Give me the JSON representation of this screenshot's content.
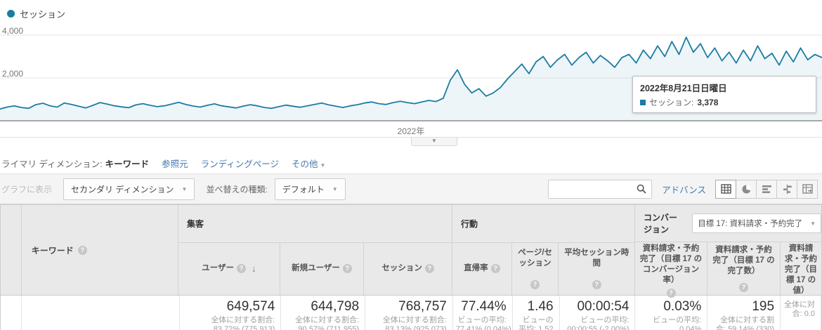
{
  "colors": {
    "accent_blue": "#1c7ca3",
    "link_blue": "#4479ad",
    "header_bg": "#e9e9e9",
    "toolbar_bg": "#f4f4f4"
  },
  "icons": {
    "help": "?",
    "caret": "▼",
    "sort_desc": "↓",
    "collapse": "▼"
  },
  "chart": {
    "legend": "セッション",
    "y_ticks": [
      "4,000",
      "2,000"
    ],
    "x_label": "2022年"
  },
  "chart_data": {
    "type": "line",
    "title": "",
    "xlabel": "2022年",
    "ylabel": "セッション",
    "ylim": [
      0,
      4600
    ],
    "y_tick_values": [
      2000,
      4000
    ],
    "grid": true,
    "legend_position": "top-left",
    "series": [
      {
        "name": "セッション",
        "values": [
          550,
          640,
          700,
          620,
          580,
          750,
          820,
          700,
          640,
          830,
          760,
          680,
          600,
          720,
          850,
          780,
          700,
          650,
          610,
          740,
          800,
          720,
          660,
          700,
          780,
          860,
          760,
          690,
          640,
          720,
          790,
          700,
          650,
          600,
          680,
          750,
          700,
          620,
          580,
          660,
          730,
          680,
          630,
          700,
          760,
          830,
          740,
          680,
          620,
          700,
          750,
          830,
          880,
          800,
          760,
          850,
          910,
          850,
          800,
          880,
          950,
          900,
          1050,
          1900,
          2380,
          1700,
          1300,
          1500,
          1150,
          1300,
          1550,
          1950,
          2300,
          2650,
          2200,
          2750,
          3000,
          2500,
          2850,
          3100,
          2600,
          2950,
          3200,
          2700,
          3050,
          2800,
          2500,
          2950,
          3100,
          2700,
          3300,
          2900,
          3500,
          3000,
          3700,
          3100,
          3900,
          3200,
          3600,
          2950,
          3400,
          2800,
          3200,
          2700,
          3300,
          2800,
          3500,
          2900,
          3150,
          2600,
          3250,
          2750,
          3400,
          2850,
          3100,
          2950
        ]
      }
    ],
    "tooltip": {
      "date": "2022年8月21日日曜日",
      "series": "セッション:",
      "value": "3,378"
    }
  },
  "dimension_bar": {
    "label": "ライマリ ディメンション:",
    "active": "キーワード",
    "links": [
      "参照元",
      "ランディングページ"
    ],
    "more": "その他"
  },
  "toolbar": {
    "plot_rows": "グラフに表示",
    "secondary_dimension": "セカンダリ ディメンション",
    "sort_type_label": "並べ替えの種類:",
    "sort_type_value": "デフォルト",
    "search_value": "",
    "advanced": "アドバンス",
    "view_buttons": [
      "data-table",
      "percentage",
      "performance",
      "comparison",
      "pivot"
    ]
  },
  "table": {
    "keyword_header": "キーワード",
    "groups": {
      "acquisition": "集客",
      "behavior": "行動",
      "conversion": "コンバージョン"
    },
    "goal_selector": "目標 17: 資料請求・予約完了",
    "columns": [
      {
        "label": "ユーザー"
      },
      {
        "label": "新規ユーザー"
      },
      {
        "label": "セッション"
      },
      {
        "label": "直帰率"
      },
      {
        "label": "ページ/セッション"
      },
      {
        "label": "平均セッション時間"
      },
      {
        "label": "資料請求・予約完了（目標 17 のコンバージョン率）"
      },
      {
        "label": "資料請求・予約完了（目標 17 の完了数）"
      },
      {
        "label": "資料請求・予約完了（目標 17 の値）"
      }
    ],
    "totals_row": {
      "keyword": "",
      "cells": [
        {
          "value": "649,574",
          "sub1": "全体に対する割合:",
          "sub2": "83.72% (775,913)"
        },
        {
          "value": "644,798",
          "sub1": "全体に対する割合:",
          "sub2": "90.57% (711,955)"
        },
        {
          "value": "768,757",
          "sub1": "全体に対する割合:",
          "sub2": "83.13% (925,073)"
        },
        {
          "value": "77.44%",
          "sub1": "ビューの平均:",
          "sub2": "77.41% (0.04%)"
        },
        {
          "value": "1.46",
          "sub1": "ビューの",
          "sub2": "平均: 1.52"
        },
        {
          "value": "00:00:54",
          "sub1": "ビューの平均:",
          "sub2": "00:00:55 (-2.00%)"
        },
        {
          "value": "0.03%",
          "sub1": "ビューの平均:",
          "sub2": "0.04%"
        },
        {
          "value": "195",
          "sub1": "全体に対する割",
          "sub2": "合: 59.14% (330)"
        },
        {
          "value": "",
          "sub1": "全体に対",
          "sub2": "合: 0.0"
        }
      ]
    }
  }
}
